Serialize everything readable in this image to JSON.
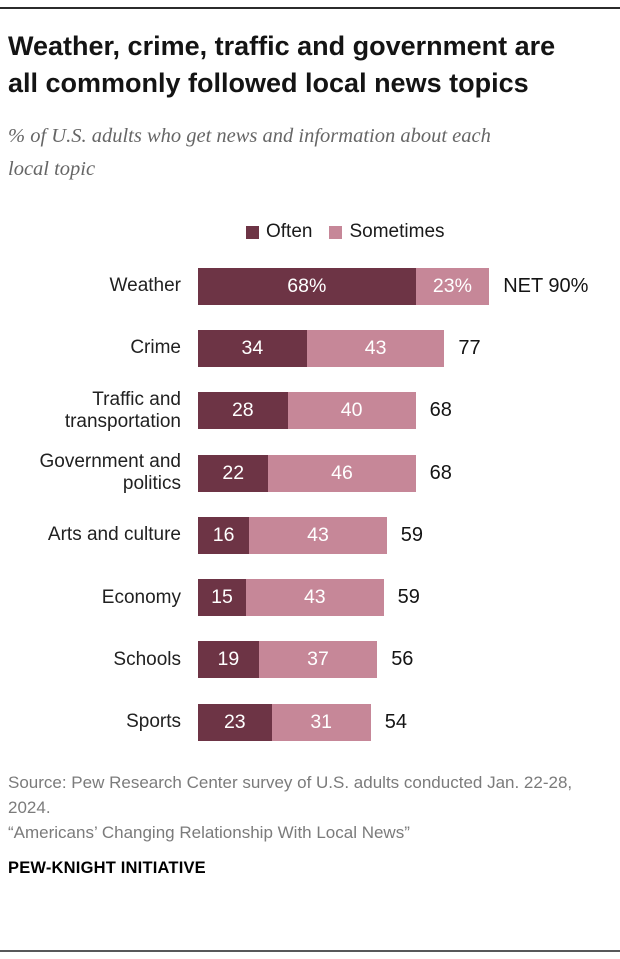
{
  "header": {
    "title": "Weather, crime, traffic and government are all commonly followed local news topics",
    "subtitle": "% of U.S. adults who get news and information about each local topic"
  },
  "legend": {
    "items": [
      {
        "label": "Often",
        "color": "#6d3445"
      },
      {
        "label": "Sometimes",
        "color": "#c68798"
      }
    ]
  },
  "chart_data": {
    "type": "bar",
    "orientation": "horizontal",
    "stacked": true,
    "unit": "% of U.S. adults",
    "xlim": [
      0,
      100
    ],
    "grid": false,
    "legend_position": "top-center",
    "categories": [
      "Weather",
      "Crime",
      "Traffic and transportation",
      "Government and politics",
      "Arts and culture",
      "Economy",
      "Schools",
      "Sports"
    ],
    "series": [
      {
        "name": "Often",
        "color": "#6d3445",
        "values": [
          68,
          34,
          28,
          22,
          16,
          15,
          19,
          23
        ]
      },
      {
        "name": "Sometimes",
        "color": "#c68798",
        "values": [
          23,
          43,
          40,
          46,
          43,
          43,
          37,
          31
        ]
      }
    ],
    "segment_labels": [
      [
        "68%",
        "23%"
      ],
      [
        "34",
        "43"
      ],
      [
        "28",
        "40"
      ],
      [
        "22",
        "46"
      ],
      [
        "16",
        "43"
      ],
      [
        "15",
        "43"
      ],
      [
        "19",
        "37"
      ],
      [
        "23",
        "31"
      ]
    ],
    "net_totals": [
      90,
      77,
      68,
      68,
      59,
      59,
      56,
      54
    ],
    "net_labels": [
      "NET 90%",
      "77",
      "68",
      "68",
      "59",
      "59",
      "56",
      "54"
    ]
  },
  "footer": {
    "source": "Source: Pew Research Center survey of U.S. adults conducted Jan. 22-28, 2024.",
    "quote": "“Americans’ Changing Relationship With Local News”",
    "org": "PEW-KNIGHT INITIATIVE"
  }
}
